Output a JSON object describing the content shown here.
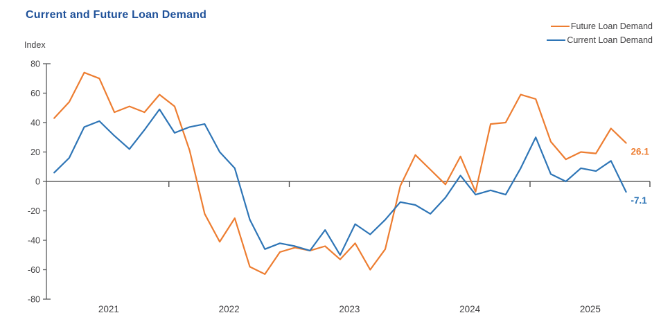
{
  "chart_data": {
    "type": "line",
    "title": "Current and Future Loan Demand",
    "ylabel": "Index",
    "ylim": [
      -80,
      80
    ],
    "ytick_step": 20,
    "ytick_labels": [
      "80",
      "60",
      "40",
      "20",
      "0",
      "-20",
      "-40",
      "-60",
      "-80"
    ],
    "x_year_labels": [
      "2021",
      "2022",
      "2023",
      "2024",
      "2025"
    ],
    "points_per_year": 8,
    "grid": false,
    "legend_position": "top-right",
    "axis_color": "#58595B",
    "text_color": "#414042",
    "series": [
      {
        "name": "Future Loan Demand",
        "color": "#ED7D31",
        "end_label": "26.1",
        "values": [
          43,
          54,
          74,
          70,
          47,
          51,
          47,
          59,
          51,
          21,
          -22,
          -41,
          -25,
          -58,
          -63,
          -48,
          -45,
          -47,
          -44,
          -53,
          -42,
          -60,
          -46,
          -3,
          18,
          8,
          -2,
          17,
          -7,
          39,
          40,
          59,
          56,
          27,
          15,
          20,
          19,
          36,
          26.1
        ]
      },
      {
        "name": "Current Loan Demand",
        "color": "#2E75B6",
        "end_label": "-7.1",
        "values": [
          6,
          16,
          37,
          41,
          31,
          22,
          35,
          49,
          33,
          37,
          39,
          20,
          9,
          -26,
          -46,
          -42,
          -44,
          -47,
          -33,
          -50,
          -29,
          -36,
          -26,
          -14,
          -16,
          -22,
          -11,
          4,
          -9,
          -6,
          -9,
          9,
          30,
          5,
          0,
          9,
          7,
          14,
          -7.1
        ]
      }
    ]
  }
}
